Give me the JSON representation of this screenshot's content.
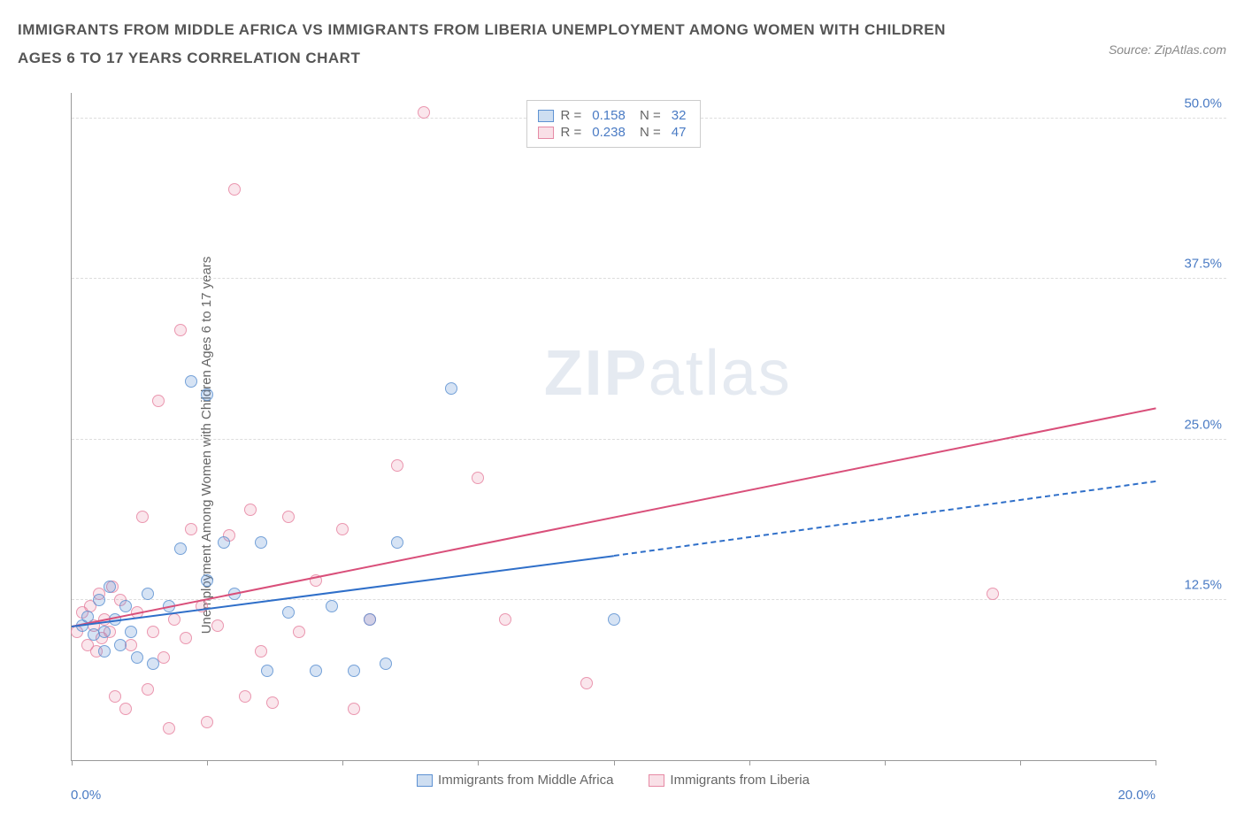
{
  "header": {
    "title": "IMMIGRANTS FROM MIDDLE AFRICA VS IMMIGRANTS FROM LIBERIA UNEMPLOYMENT AMONG WOMEN WITH CHILDREN AGES 6 TO 17 YEARS CORRELATION CHART",
    "source": "Source: ZipAtlas.com"
  },
  "chart": {
    "type": "scatter",
    "y_axis_label": "Unemployment Among Women with Children Ages 6 to 17 years",
    "xlim": [
      0,
      20
    ],
    "ylim": [
      0,
      52
    ],
    "x_ticks": [
      0,
      2.5,
      5,
      7.5,
      10,
      12.5,
      15,
      17.5,
      20
    ],
    "x_tick_labels": {
      "min": "0.0%",
      "max": "20.0%"
    },
    "y_gridlines": [
      12.5,
      25,
      37.5,
      50
    ],
    "y_tick_labels": [
      "12.5%",
      "25.0%",
      "37.5%",
      "50.0%"
    ],
    "background_color": "#ffffff",
    "grid_color": "#dddddd",
    "axis_color": "#999999",
    "text_color": "#666666",
    "tick_label_color": "#4a7bc4",
    "watermark": "ZIPatlas",
    "series": [
      {
        "name": "Immigrants from Middle Africa",
        "color_fill": "rgba(93,145,210,0.25)",
        "color_border": "#5d91d2",
        "R": "0.158",
        "N": "32",
        "trend": {
          "x1": 0,
          "y1": 10.5,
          "x2": 10,
          "y2": 16,
          "x2_ext": 20,
          "y2_ext": 21.8,
          "solid_until": 10,
          "color": "#2f6fc9"
        },
        "points": [
          [
            0.2,
            10.5
          ],
          [
            0.3,
            11.2
          ],
          [
            0.4,
            9.8
          ],
          [
            0.5,
            12.5
          ],
          [
            0.6,
            10.0
          ],
          [
            0.7,
            13.5
          ],
          [
            0.8,
            11.0
          ],
          [
            0.9,
            9.0
          ],
          [
            1.0,
            12.0
          ],
          [
            1.2,
            8.0
          ],
          [
            1.4,
            13.0
          ],
          [
            1.5,
            7.5
          ],
          [
            1.8,
            12.0
          ],
          [
            2.0,
            16.5
          ],
          [
            2.2,
            29.5
          ],
          [
            2.5,
            28.5
          ],
          [
            2.5,
            14.0
          ],
          [
            2.8,
            17.0
          ],
          [
            3.0,
            13.0
          ],
          [
            3.5,
            17.0
          ],
          [
            3.6,
            7.0
          ],
          [
            4.0,
            11.5
          ],
          [
            4.5,
            7.0
          ],
          [
            4.8,
            12.0
          ],
          [
            5.2,
            7.0
          ],
          [
            5.5,
            11.0
          ],
          [
            5.8,
            7.5
          ],
          [
            6.0,
            17.0
          ],
          [
            7.0,
            29.0
          ],
          [
            10.0,
            11.0
          ],
          [
            0.6,
            8.5
          ],
          [
            1.1,
            10.0
          ]
        ]
      },
      {
        "name": "Immigrants from Liberia",
        "color_fill": "rgba(230,130,160,0.2)",
        "color_border": "#e68aa5",
        "R": "0.238",
        "N": "47",
        "trend": {
          "x1": 0,
          "y1": 10.5,
          "x2": 20,
          "y2": 27.5,
          "color": "#d94f7a"
        },
        "points": [
          [
            0.1,
            10.0
          ],
          [
            0.2,
            11.5
          ],
          [
            0.3,
            9.0
          ],
          [
            0.35,
            12.0
          ],
          [
            0.4,
            10.5
          ],
          [
            0.45,
            8.5
          ],
          [
            0.5,
            13.0
          ],
          [
            0.55,
            9.5
          ],
          [
            0.6,
            11.0
          ],
          [
            0.7,
            10.0
          ],
          [
            0.75,
            13.5
          ],
          [
            0.8,
            5.0
          ],
          [
            0.9,
            12.5
          ],
          [
            1.0,
            4.0
          ],
          [
            1.1,
            9.0
          ],
          [
            1.2,
            11.5
          ],
          [
            1.3,
            19.0
          ],
          [
            1.4,
            5.5
          ],
          [
            1.5,
            10.0
          ],
          [
            1.6,
            28.0
          ],
          [
            1.7,
            8.0
          ],
          [
            1.8,
            2.5
          ],
          [
            1.9,
            11.0
          ],
          [
            2.0,
            33.5
          ],
          [
            2.1,
            9.5
          ],
          [
            2.2,
            18.0
          ],
          [
            2.4,
            12.0
          ],
          [
            2.5,
            3.0
          ],
          [
            2.7,
            10.5
          ],
          [
            3.0,
            44.5
          ],
          [
            3.2,
            5.0
          ],
          [
            3.3,
            19.5
          ],
          [
            3.5,
            8.5
          ],
          [
            3.7,
            4.5
          ],
          [
            4.0,
            19.0
          ],
          [
            4.2,
            10.0
          ],
          [
            4.5,
            14.0
          ],
          [
            5.0,
            18.0
          ],
          [
            5.2,
            4.0
          ],
          [
            5.5,
            11.0
          ],
          [
            6.0,
            23.0
          ],
          [
            6.5,
            50.5
          ],
          [
            7.5,
            22.0
          ],
          [
            8.0,
            11.0
          ],
          [
            9.5,
            6.0
          ],
          [
            17.0,
            13.0
          ],
          [
            2.9,
            17.5
          ]
        ]
      }
    ],
    "bottom_legend": [
      "Immigrants from Middle Africa",
      "Immigrants from Liberia"
    ]
  }
}
